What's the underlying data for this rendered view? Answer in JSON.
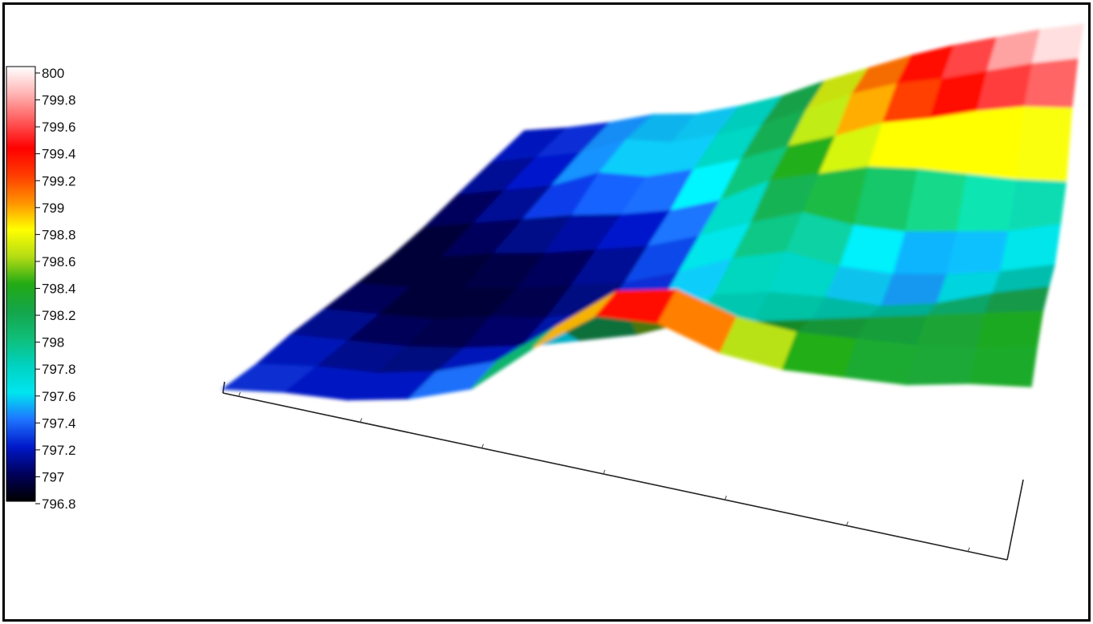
{
  "chart_data": {
    "type": "3d-surface",
    "colorbar": {
      "min": 796.8,
      "max": 800,
      "ticks": [
        "800",
        "799.8",
        "799.6",
        "799.4",
        "799.2",
        "799",
        "798.8",
        "798.6",
        "798.4",
        "798.2",
        "798",
        "797.8",
        "797.6",
        "797.4",
        "797.2",
        "797",
        "796.8"
      ],
      "colormap": [
        {
          "value": 796.8,
          "color": "#000000"
        },
        {
          "value": 797.0,
          "color": "#00005a"
        },
        {
          "value": 797.2,
          "color": "#0018c8"
        },
        {
          "value": 797.4,
          "color": "#1e73ff"
        },
        {
          "value": 797.6,
          "color": "#00e5f0"
        },
        {
          "value": 797.8,
          "color": "#00d2c0"
        },
        {
          "value": 798.0,
          "color": "#10be78"
        },
        {
          "value": 798.2,
          "color": "#14a54a"
        },
        {
          "value": 798.4,
          "color": "#23aa14"
        },
        {
          "value": 798.6,
          "color": "#b4dc14"
        },
        {
          "value": 798.8,
          "color": "#ffff00"
        },
        {
          "value": 799.0,
          "color": "#ff9100"
        },
        {
          "value": 799.2,
          "color": "#ff3c00"
        },
        {
          "value": 799.4,
          "color": "#ff0000"
        },
        {
          "value": 799.6,
          "color": "#ff5a5a"
        },
        {
          "value": 799.8,
          "color": "#ffb4b4"
        },
        {
          "value": 800.0,
          "color": "#ffffff"
        }
      ],
      "legend_position": "left"
    },
    "surface": {
      "rows": 10,
      "cols": 14,
      "z": [
        [
          797.2,
          797.2,
          797.3,
          797.5,
          797.4,
          797.6,
          797.9,
          798.4,
          798.8,
          799.2,
          799.5,
          799.7,
          799.9,
          800.0
        ],
        [
          797.1,
          797.2,
          797.3,
          797.7,
          797.5,
          797.7,
          798.0,
          798.5,
          799.0,
          799.3,
          799.4,
          799.6,
          799.8,
          799.9
        ],
        [
          797.0,
          797.1,
          797.2,
          797.6,
          797.4,
          797.6,
          797.9,
          798.3,
          798.6,
          799.0,
          799.1,
          799.3,
          799.4,
          799.3
        ],
        [
          796.9,
          797.0,
          797.1,
          797.2,
          797.2,
          797.3,
          797.6,
          798.2,
          798.4,
          798.6,
          798.5,
          798.3,
          798.1,
          798.0
        ],
        [
          796.9,
          796.9,
          797.0,
          797.0,
          797.1,
          797.2,
          797.5,
          797.9,
          798.2,
          797.8,
          797.6,
          797.6,
          797.6,
          797.8
        ],
        [
          797.0,
          796.9,
          796.9,
          796.9,
          797.0,
          797.1,
          797.4,
          797.8,
          798.0,
          797.6,
          797.4,
          797.4,
          797.5,
          797.7
        ],
        [
          797.1,
          797.0,
          796.9,
          797.0,
          797.0,
          797.2,
          797.3,
          797.7,
          797.8,
          797.7,
          797.5,
          797.6,
          797.9,
          798.1
        ],
        [
          797.2,
          797.1,
          797.0,
          797.0,
          797.1,
          797.3,
          797.5,
          797.9,
          797.9,
          798.0,
          798.1,
          798.2,
          798.3,
          798.4
        ],
        [
          797.2,
          797.2,
          797.1,
          797.2,
          797.5,
          798.4,
          799.3,
          799.4,
          798.8,
          798.5,
          798.4,
          798.3,
          798.3,
          798.4
        ],
        [
          797.3,
          797.3,
          797.2,
          797.3,
          797.6,
          798.6,
          799.4,
          799.3,
          798.7,
          798.4,
          798.3,
          798.2,
          798.3,
          798.3
        ]
      ]
    }
  }
}
